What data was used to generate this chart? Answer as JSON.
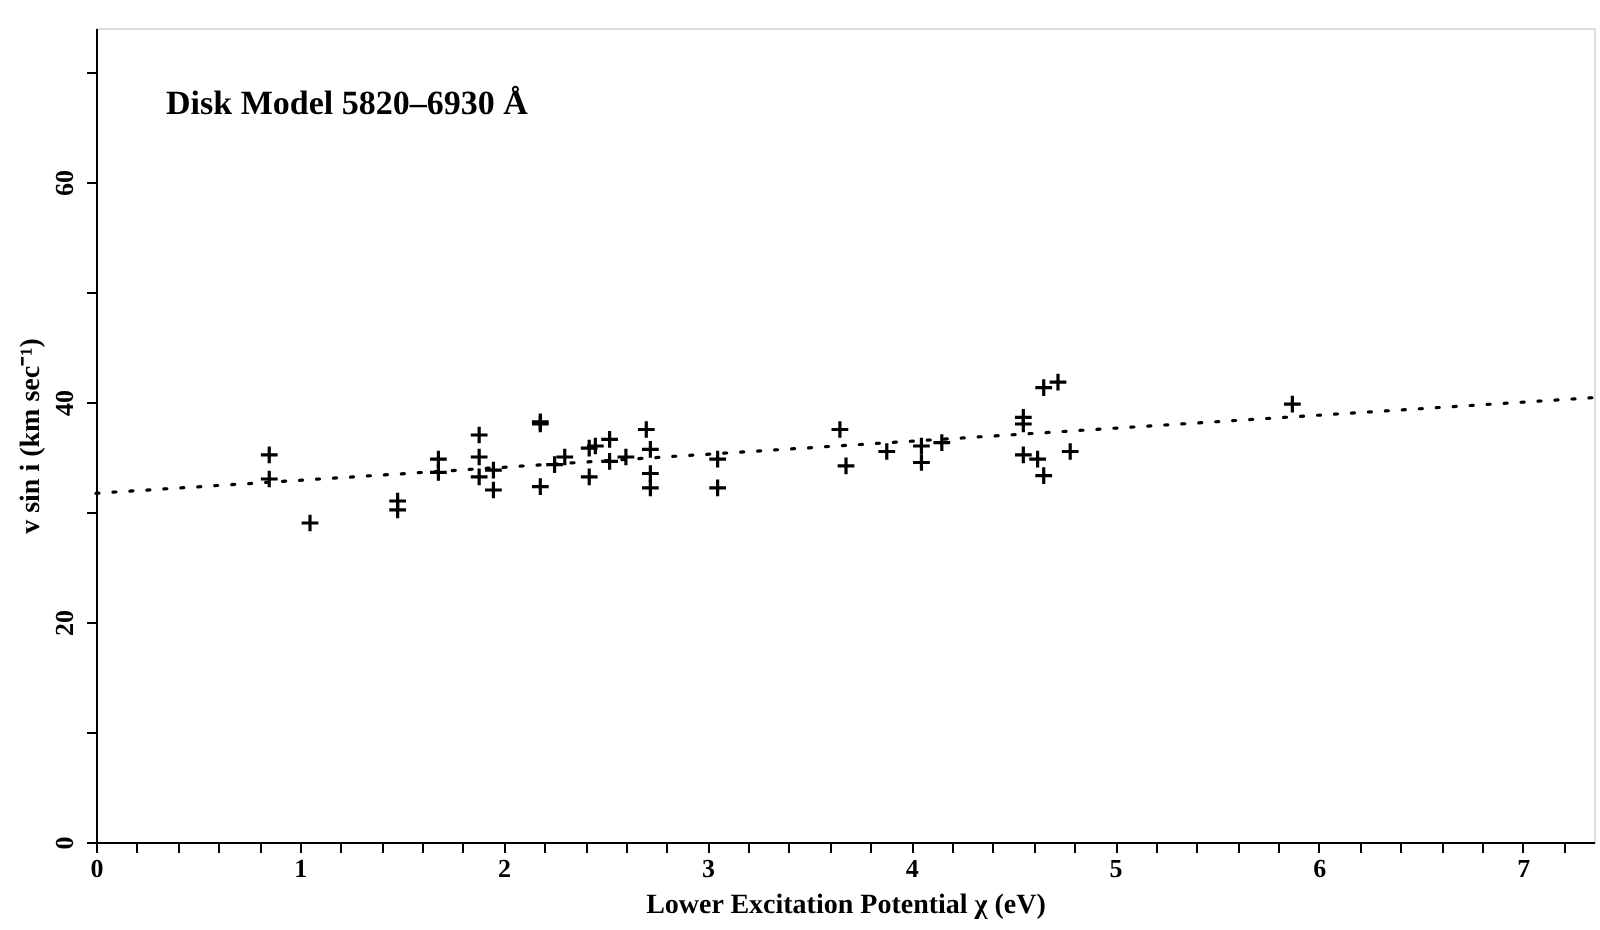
{
  "chart_data": {
    "type": "scatter",
    "title": "Disk Model  5820–6930 Å",
    "xlabel": "Lower Excitation Potential χ  (eV)",
    "ylabel": "v sin i  (km sec⁻¹)",
    "xlim": [
      0,
      7.35
    ],
    "ylim": [
      0,
      74
    ],
    "xticks": [
      0,
      {
        "value": 0.2,
        "label": null
      },
      {
        "value": 0.4,
        "label": null
      },
      {
        "value": 0.6,
        "label": null
      },
      {
        "value": 0.8,
        "label": null
      },
      1,
      {
        "value": 1.2,
        "label": null
      },
      {
        "value": 1.4,
        "label": null
      },
      {
        "value": 1.6,
        "label": null
      },
      {
        "value": 1.8,
        "label": null
      },
      2,
      {
        "value": 2.2,
        "label": null
      },
      {
        "value": 2.4,
        "label": null
      },
      {
        "value": 2.6,
        "label": null
      },
      {
        "value": 2.8,
        "label": null
      },
      3,
      {
        "value": 3.2,
        "label": null
      },
      {
        "value": 3.4,
        "label": null
      },
      {
        "value": 3.6,
        "label": null
      },
      {
        "value": 3.8,
        "label": null
      },
      4,
      {
        "value": 4.2,
        "label": null
      },
      {
        "value": 4.4,
        "label": null
      },
      {
        "value": 4.6,
        "label": null
      },
      {
        "value": 4.8,
        "label": null
      },
      5,
      {
        "value": 5.2,
        "label": null
      },
      {
        "value": 5.4,
        "label": null
      },
      {
        "value": 5.6,
        "label": null
      },
      {
        "value": 5.8,
        "label": null
      },
      6,
      {
        "value": 6.2,
        "label": null
      },
      {
        "value": 6.4,
        "label": null
      },
      {
        "value": 6.6,
        "label": null
      },
      {
        "value": 6.8,
        "label": null
      },
      7,
      {
        "value": 7.2,
        "label": null
      }
    ],
    "yticks": [
      0,
      {
        "value": 10,
        "label": null
      },
      20,
      {
        "value": 30,
        "label": null
      },
      40,
      {
        "value": 50,
        "label": null
      },
      60,
      {
        "value": 70,
        "label": null
      }
    ],
    "grid": false,
    "series": [
      {
        "color": "#000000",
        "marker": "cross",
        "x": [
          0.85,
          0.85,
          1.05,
          1.48,
          1.48,
          1.68,
          1.68,
          1.88,
          1.88,
          1.88,
          1.95,
          1.95,
          2.18,
          2.18,
          2.18,
          2.25,
          2.3,
          2.42,
          2.42,
          2.45,
          2.52,
          2.52,
          2.6,
          2.7,
          2.72,
          2.72,
          2.72,
          3.05,
          3.05,
          3.65,
          3.68,
          3.88,
          4.05,
          4.05,
          4.15,
          4.55,
          4.55,
          4.55,
          4.62,
          4.65,
          4.65,
          4.72,
          4.78,
          5.87
        ],
        "values": [
          35.2,
          33.0,
          29.0,
          31.0,
          30.2,
          34.8,
          33.6,
          37.0,
          35.0,
          33.2,
          33.8,
          32.0,
          38.2,
          38.0,
          32.3,
          34.3,
          35.0,
          35.8,
          33.2,
          36.0,
          36.6,
          34.6,
          35.0,
          37.5,
          35.7,
          33.5,
          32.2,
          34.8,
          32.2,
          37.5,
          34.2,
          35.5,
          36.0,
          34.5,
          36.3,
          38.6,
          38.0,
          35.2,
          34.8,
          33.3,
          41.3,
          41.8,
          35.5,
          39.8
        ]
      },
      {
        "type": "line",
        "color": "#000000",
        "line_style": "dotted",
        "x": [
          0,
          7.35
        ],
        "values": [
          31.7,
          40.4
        ]
      }
    ]
  }
}
